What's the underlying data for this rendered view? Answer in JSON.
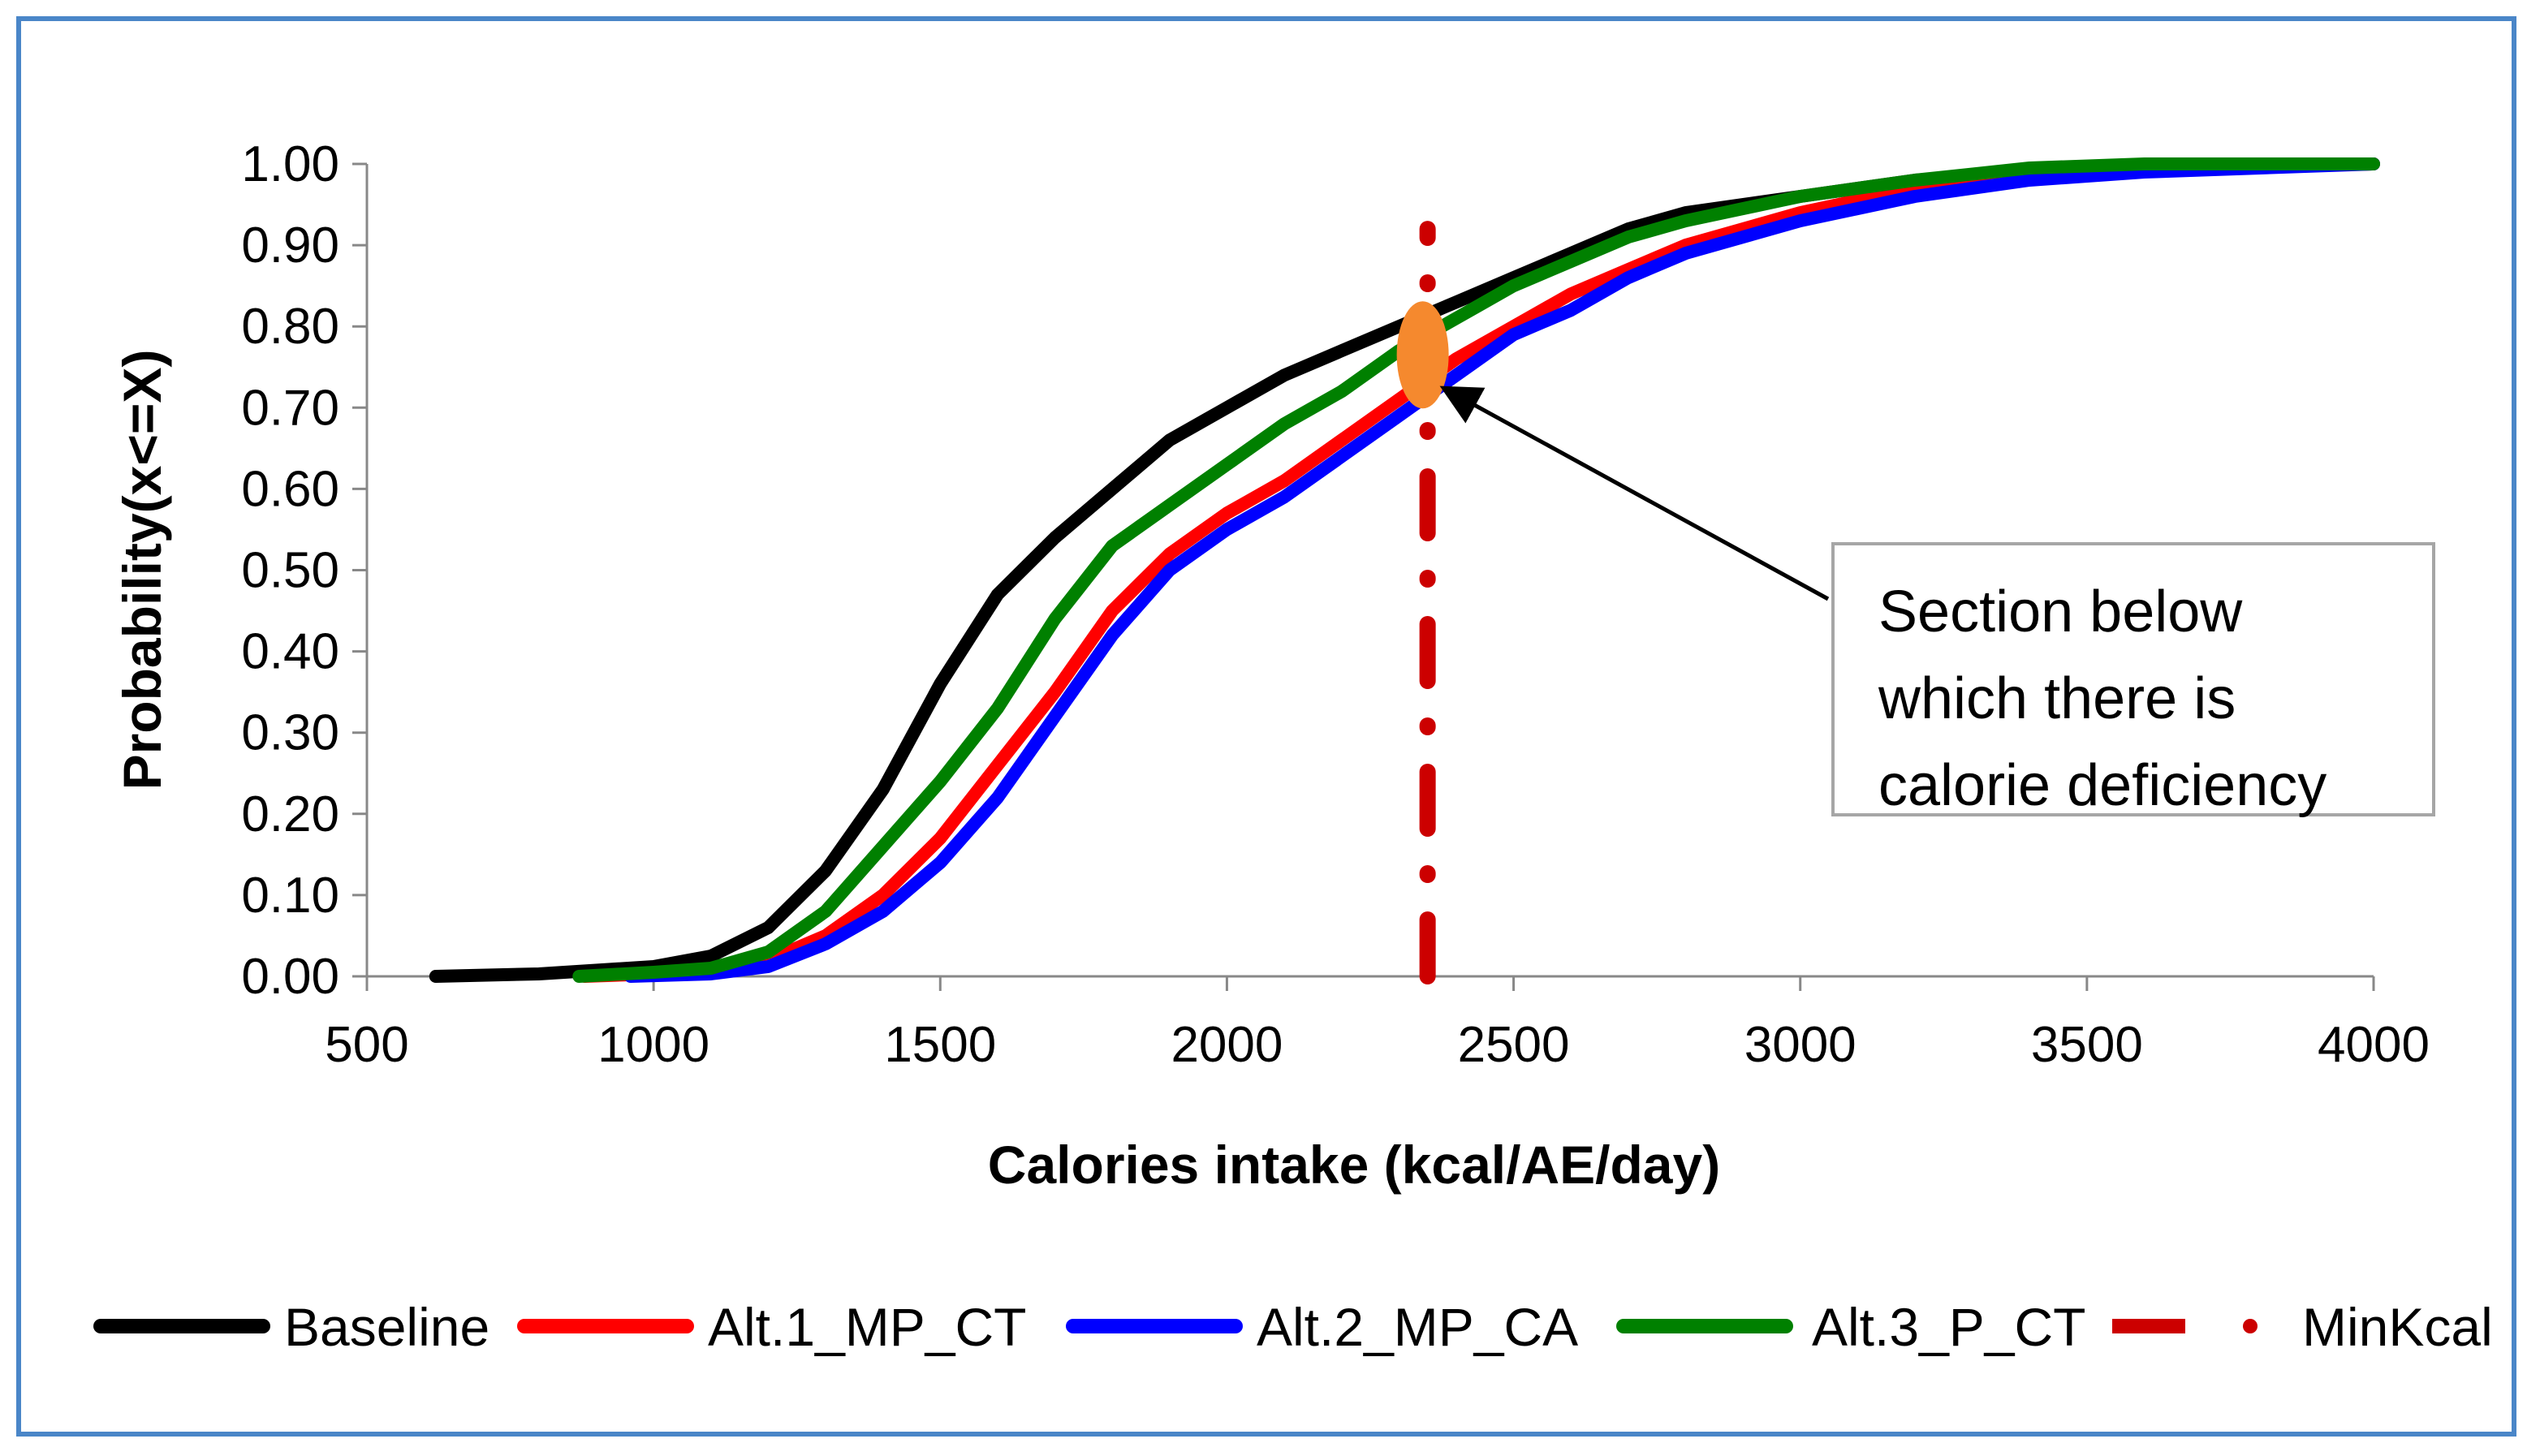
{
  "chart_data": {
    "type": "line",
    "xlabel": "Calories intake (kcal/AE/day)",
    "ylabel": "Probability(x<=X)",
    "xlim": [
      500,
      4000
    ],
    "ylim": [
      0,
      1
    ],
    "x_ticks": [
      "500",
      "1000",
      "1500",
      "2000",
      "2500",
      "3000",
      "3500",
      "4000"
    ],
    "y_ticks": [
      "0.00",
      "0.10",
      "0.20",
      "0.30",
      "0.40",
      "0.50",
      "0.60",
      "0.70",
      "0.80",
      "0.90",
      "1.00"
    ],
    "grid": false,
    "legend_position": "bottom",
    "series": [
      {
        "name": "Baseline",
        "color": "#000000",
        "points": [
          [
            620,
            0
          ],
          [
            800,
            0.003
          ],
          [
            1000,
            0.012
          ],
          [
            1100,
            0.025
          ],
          [
            1200,
            0.06
          ],
          [
            1300,
            0.13
          ],
          [
            1400,
            0.23
          ],
          [
            1500,
            0.36
          ],
          [
            1600,
            0.47
          ],
          [
            1700,
            0.54
          ],
          [
            1800,
            0.6
          ],
          [
            1900,
            0.66
          ],
          [
            2000,
            0.7
          ],
          [
            2100,
            0.74
          ],
          [
            2200,
            0.77
          ],
          [
            2300,
            0.8
          ],
          [
            2400,
            0.83
          ],
          [
            2500,
            0.86
          ],
          [
            2600,
            0.89
          ],
          [
            2700,
            0.92
          ],
          [
            2800,
            0.94
          ],
          [
            3000,
            0.96
          ],
          [
            3200,
            0.98
          ],
          [
            3400,
            0.99
          ],
          [
            3600,
            0.995
          ],
          [
            4000,
            1
          ]
        ]
      },
      {
        "name": "Alt.1_MP_CT",
        "color": "#ff0000",
        "points": [
          [
            880,
            0
          ],
          [
            1000,
            0.003
          ],
          [
            1100,
            0.008
          ],
          [
            1200,
            0.02
          ],
          [
            1300,
            0.05
          ],
          [
            1400,
            0.1
          ],
          [
            1500,
            0.17
          ],
          [
            1600,
            0.26
          ],
          [
            1700,
            0.35
          ],
          [
            1800,
            0.45
          ],
          [
            1900,
            0.52
          ],
          [
            2000,
            0.57
          ],
          [
            2100,
            0.61
          ],
          [
            2200,
            0.66
          ],
          [
            2300,
            0.71
          ],
          [
            2400,
            0.76
          ],
          [
            2500,
            0.8
          ],
          [
            2600,
            0.84
          ],
          [
            2700,
            0.87
          ],
          [
            2800,
            0.9
          ],
          [
            3000,
            0.94
          ],
          [
            3200,
            0.97
          ],
          [
            3400,
            0.985
          ],
          [
            3600,
            0.995
          ],
          [
            4000,
            1
          ]
        ]
      },
      {
        "name": "Alt.2_MP_CA",
        "color": "#0000ff",
        "points": [
          [
            960,
            0
          ],
          [
            1100,
            0.003
          ],
          [
            1200,
            0.012
          ],
          [
            1300,
            0.04
          ],
          [
            1400,
            0.08
          ],
          [
            1500,
            0.14
          ],
          [
            1600,
            0.22
          ],
          [
            1700,
            0.32
          ],
          [
            1800,
            0.42
          ],
          [
            1900,
            0.5
          ],
          [
            2000,
            0.55
          ],
          [
            2100,
            0.59
          ],
          [
            2200,
            0.64
          ],
          [
            2300,
            0.69
          ],
          [
            2400,
            0.74
          ],
          [
            2500,
            0.79
          ],
          [
            2600,
            0.82
          ],
          [
            2700,
            0.86
          ],
          [
            2800,
            0.89
          ],
          [
            3000,
            0.93
          ],
          [
            3200,
            0.96
          ],
          [
            3400,
            0.98
          ],
          [
            3600,
            0.99
          ],
          [
            4000,
            1
          ]
        ]
      },
      {
        "name": "Alt.3_P_CT",
        "color": "#008000",
        "points": [
          [
            870,
            0
          ],
          [
            1000,
            0.005
          ],
          [
            1100,
            0.01
          ],
          [
            1200,
            0.03
          ],
          [
            1300,
            0.08
          ],
          [
            1400,
            0.16
          ],
          [
            1500,
            0.24
          ],
          [
            1600,
            0.33
          ],
          [
            1700,
            0.44
          ],
          [
            1800,
            0.53
          ],
          [
            1900,
            0.58
          ],
          [
            2000,
            0.63
          ],
          [
            2100,
            0.68
          ],
          [
            2200,
            0.72
          ],
          [
            2300,
            0.77
          ],
          [
            2400,
            0.81
          ],
          [
            2500,
            0.85
          ],
          [
            2600,
            0.88
          ],
          [
            2700,
            0.91
          ],
          [
            2800,
            0.93
          ],
          [
            3000,
            0.96
          ],
          [
            3200,
            0.98
          ],
          [
            3400,
            0.995
          ],
          [
            3600,
            1
          ],
          [
            4000,
            1
          ]
        ]
      },
      {
        "name": "MinKcal",
        "color": "#cc0000",
        "x_value": 2350
      }
    ],
    "annotation": {
      "lines": [
        "Section below",
        "which there is",
        "calorie deficiency"
      ]
    }
  }
}
